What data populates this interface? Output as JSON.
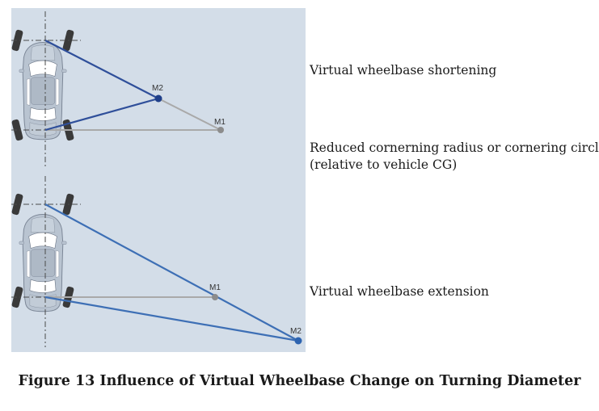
{
  "diagram": {
    "top_panel": {
      "point_labels": {
        "m1": "M1",
        "m2": "M2"
      }
    },
    "bottom_panel": {
      "point_labels": {
        "m1": "M1",
        "m2": "M2"
      }
    }
  },
  "labels": {
    "shortening": "Virtual wheelbase shortening",
    "reduced_line1": "Reduced cornerning radius or cornering circle",
    "reduced_line2": "(relative to vehicle CG)",
    "extension": "Virtual wheelbase extension"
  },
  "caption": "Figure 13 Influence of Virtual Wheelbase Change on Turning Diameter",
  "colors": {
    "panel_bg": "#d3dde8",
    "dark_blue": "#2f4f9a",
    "mid_blue": "#3d6fb5",
    "gray_line": "#a9a9a9",
    "gray_dot": "#8c8c8c"
  }
}
